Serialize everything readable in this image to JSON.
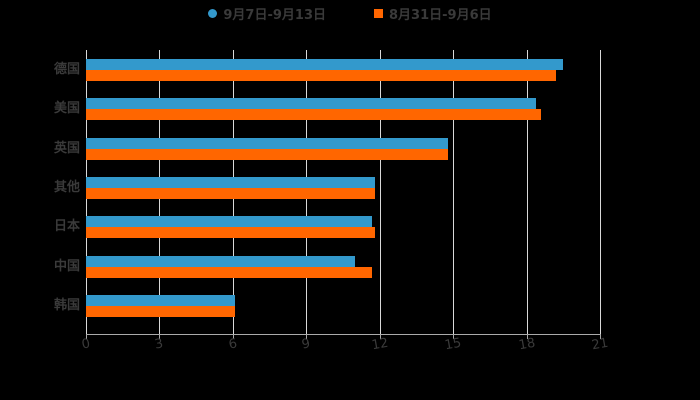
{
  "chart_data": {
    "type": "bar",
    "orientation": "horizontal",
    "title": "",
    "xlabel": "",
    "ylabel": "",
    "xlim": [
      0,
      21
    ],
    "x_ticks": [
      "0",
      "3",
      "6",
      "9",
      "12",
      "15",
      "18",
      "21"
    ],
    "grid": true,
    "legend_position": "top",
    "categories": [
      "德国",
      "美国",
      "英国",
      "其他",
      "日本",
      "中国",
      "韩国"
    ],
    "series": [
      {
        "name": "9月7日-9月13日",
        "color": "#3399cc",
        "marker": "circle",
        "values": [
          19.5,
          18.4,
          14.8,
          11.8,
          11.7,
          11.0,
          6.1
        ]
      },
      {
        "name": "8月31日-9月6日",
        "color": "#ff6600",
        "marker": "square",
        "values": [
          19.2,
          18.6,
          14.8,
          11.8,
          11.8,
          11.7,
          6.1
        ]
      }
    ]
  }
}
